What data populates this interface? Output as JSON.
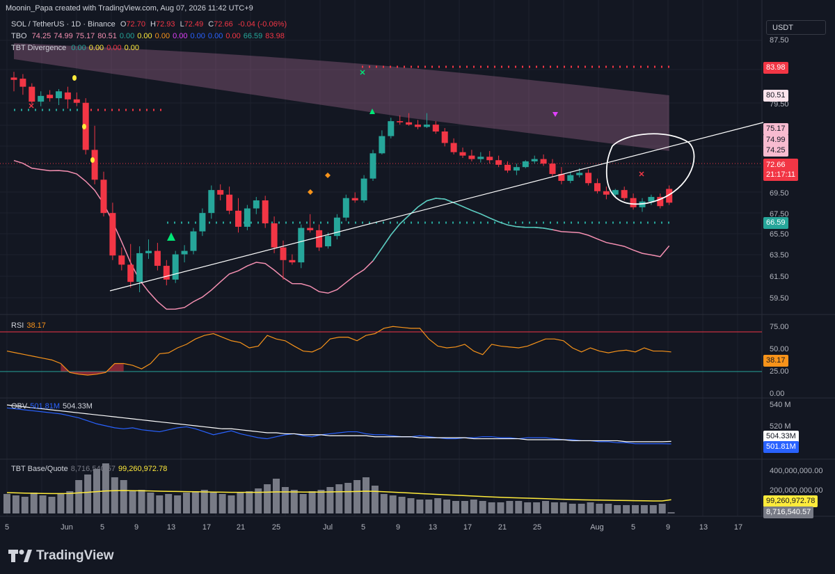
{
  "header": {
    "credit": "Moonin_Papa created with TradingView.com, Aug 07, 2026 11:42 UTC+9",
    "brand": "TradingView"
  },
  "legend": {
    "symbol": "SOL / TetherUS · 1D · Binance",
    "ohlc": {
      "o": "72.70",
      "h": "72.93",
      "l": "72.49",
      "c": "72.66",
      "chg": "-0.04 (-0.06%)"
    },
    "tbo": {
      "name": "TBO",
      "values": [
        "74.25",
        "74.99",
        "75.17",
        "80.51",
        "0.00",
        "0.00",
        "0.00",
        "0.00",
        "0.00",
        "0.00",
        "0.00",
        "66.59",
        "83.98"
      ]
    },
    "divergence": {
      "name": "TBT Divergence",
      "values": [
        "0.00",
        "0.00",
        "0.00",
        "0.00"
      ]
    },
    "rsi": {
      "name": "RSI",
      "value": "38.17"
    },
    "obv": {
      "name": "OBV",
      "v1": "501.81M",
      "v2": "504.33M"
    },
    "base_quote": {
      "name": "TBT Base/Quote",
      "v1": "8,716,540.57",
      "v2": "99,260,972.78"
    }
  },
  "currency_button": "USDT",
  "price_tags": {
    "p8398": "83.98",
    "p8051": "80.51",
    "p7517": "75.17",
    "p7499": "74.99",
    "p7425": "74.25",
    "last": "72.66",
    "countdown": "21:17:11",
    "p6659": "66.59",
    "rsi": "38.17",
    "obv1": "504.33M",
    "obv2": "501.81M",
    "vol_ma": "99,260,972.78",
    "vol": "8,716,540.57"
  },
  "colors": {
    "up": "#26a69a",
    "down": "#f23645",
    "bg": "#131722",
    "grid": "#1e222d",
    "rsi": "#f7931a",
    "obv": "#2962ff",
    "pink": "#f48fb1",
    "teal": "#4dd0c0",
    "yellow": "#ffeb3b"
  },
  "chart_data": [
    {
      "type": "candlestick",
      "title": "SOL / TetherUS · 1D · Binance",
      "y_ticks": [
        "87.50",
        "81.50",
        "79.50",
        "75.50",
        "73.50",
        "71.50",
        "69.50",
        "67.50",
        "65.50",
        "63.50",
        "61.50",
        "59.50"
      ],
      "x_ticks": [
        "5",
        "Jun",
        "5",
        "9",
        "13",
        "17",
        "21",
        "25",
        "Jul",
        "5",
        "9",
        "13",
        "17",
        "21",
        "25",
        "Aug",
        "5",
        "9",
        "13",
        "17"
      ],
      "ylim": [
        58.5,
        89.5
      ],
      "x_start": "2026-05-25",
      "candles": [
        {
          "d": "2026-05-26",
          "o": 74.7,
          "h": 75.2,
          "l": 73.5,
          "c": 74.5
        },
        {
          "d": "2026-05-27",
          "o": 74.6,
          "h": 75.0,
          "l": 73.2,
          "c": 73.9
        },
        {
          "d": "2026-05-28",
          "o": 73.9,
          "h": 74.2,
          "l": 72.4,
          "c": 72.6
        },
        {
          "d": "2026-05-29",
          "o": 72.6,
          "h": 73.5,
          "l": 72.2,
          "c": 73.1
        },
        {
          "d": "2026-05-30",
          "o": 73.2,
          "h": 73.6,
          "l": 72.6,
          "c": 72.9
        },
        {
          "d": "2026-05-31",
          "o": 72.9,
          "h": 73.7,
          "l": 72.3,
          "c": 73.5
        },
        {
          "d": "2026-06-01",
          "o": 73.4,
          "h": 73.9,
          "l": 72.0,
          "c": 72.8
        },
        {
          "d": "2026-06-02",
          "o": 72.8,
          "h": 73.4,
          "l": 72.2,
          "c": 72.5
        },
        {
          "d": "2026-06-03",
          "o": 72.5,
          "h": 72.9,
          "l": 68.0,
          "c": 68.4
        },
        {
          "d": "2026-06-04",
          "o": 68.4,
          "h": 70.5,
          "l": 65.4,
          "c": 65.8
        },
        {
          "d": "2026-06-05",
          "o": 65.8,
          "h": 66.5,
          "l": 62.6,
          "c": 62.9
        },
        {
          "d": "2026-06-06",
          "o": 62.9,
          "h": 63.8,
          "l": 58.8,
          "c": 59.2
        },
        {
          "d": "2026-06-07",
          "o": 59.2,
          "h": 59.9,
          "l": 57.9,
          "c": 58.4
        },
        {
          "d": "2026-06-08",
          "o": 58.4,
          "h": 60.2,
          "l": 56.4,
          "c": 56.9
        },
        {
          "d": "2026-06-09",
          "o": 56.9,
          "h": 60.0,
          "l": 56.0,
          "c": 59.4
        },
        {
          "d": "2026-06-10",
          "o": 59.4,
          "h": 60.6,
          "l": 58.9,
          "c": 59.6
        },
        {
          "d": "2026-06-11",
          "o": 59.6,
          "h": 60.3,
          "l": 57.9,
          "c": 58.3
        },
        {
          "d": "2026-06-12",
          "o": 58.3,
          "h": 58.8,
          "l": 56.6,
          "c": 57.1
        },
        {
          "d": "2026-06-13",
          "o": 57.1,
          "h": 59.6,
          "l": 56.8,
          "c": 59.3
        },
        {
          "d": "2026-06-14",
          "o": 59.3,
          "h": 60.1,
          "l": 58.6,
          "c": 59.6
        },
        {
          "d": "2026-06-15",
          "o": 59.6,
          "h": 61.6,
          "l": 59.3,
          "c": 61.3
        },
        {
          "d": "2026-06-16",
          "o": 61.3,
          "h": 63.3,
          "l": 60.9,
          "c": 62.9
        },
        {
          "d": "2026-06-17",
          "o": 62.9,
          "h": 65.3,
          "l": 62.4,
          "c": 64.9
        },
        {
          "d": "2026-06-18",
          "o": 64.9,
          "h": 65.4,
          "l": 64.0,
          "c": 64.5
        },
        {
          "d": "2026-06-19",
          "o": 64.5,
          "h": 65.2,
          "l": 62.8,
          "c": 63.1
        },
        {
          "d": "2026-06-20",
          "o": 63.1,
          "h": 64.2,
          "l": 61.2,
          "c": 61.7
        },
        {
          "d": "2026-06-21",
          "o": 61.7,
          "h": 63.6,
          "l": 61.4,
          "c": 63.3
        },
        {
          "d": "2026-06-22",
          "o": 63.3,
          "h": 64.3,
          "l": 62.8,
          "c": 64.0
        },
        {
          "d": "2026-06-23",
          "o": 64.0,
          "h": 64.4,
          "l": 61.6,
          "c": 62.0
        },
        {
          "d": "2026-06-24",
          "o": 62.0,
          "h": 62.6,
          "l": 59.4,
          "c": 59.9
        },
        {
          "d": "2026-06-25",
          "o": 59.9,
          "h": 60.5,
          "l": 57.1,
          "c": 58.8
        },
        {
          "d": "2026-06-26",
          "o": 58.8,
          "h": 59.3,
          "l": 58.4,
          "c": 58.6
        },
        {
          "d": "2026-06-27",
          "o": 58.6,
          "h": 61.9,
          "l": 58.1,
          "c": 61.6
        },
        {
          "d": "2026-06-28",
          "o": 61.6,
          "h": 62.8,
          "l": 61.2,
          "c": 61.4
        },
        {
          "d": "2026-06-29",
          "o": 61.4,
          "h": 61.9,
          "l": 59.6,
          "c": 59.9
        },
        {
          "d": "2026-06-30",
          "o": 60.0,
          "h": 61.2,
          "l": 59.8,
          "c": 60.9
        },
        {
          "d": "2026-07-01",
          "o": 60.9,
          "h": 62.8,
          "l": 60.6,
          "c": 62.5
        },
        {
          "d": "2026-07-02",
          "o": 62.5,
          "h": 64.5,
          "l": 62.2,
          "c": 64.2
        },
        {
          "d": "2026-07-03",
          "o": 64.2,
          "h": 64.7,
          "l": 63.8,
          "c": 64.0
        },
        {
          "d": "2026-07-04",
          "o": 64.0,
          "h": 66.2,
          "l": 63.8,
          "c": 65.9
        },
        {
          "d": "2026-07-05",
          "o": 65.9,
          "h": 68.4,
          "l": 65.7,
          "c": 68.1
        },
        {
          "d": "2026-07-06",
          "o": 68.1,
          "h": 70.1,
          "l": 68.0,
          "c": 69.6
        },
        {
          "d": "2026-07-07",
          "o": 69.6,
          "h": 71.2,
          "l": 69.4,
          "c": 70.9
        },
        {
          "d": "2026-07-08",
          "o": 70.9,
          "h": 71.4,
          "l": 70.6,
          "c": 70.8
        },
        {
          "d": "2026-07-09",
          "o": 70.8,
          "h": 71.6,
          "l": 70.5,
          "c": 70.6
        },
        {
          "d": "2026-07-10",
          "o": 70.6,
          "h": 71.0,
          "l": 70.2,
          "c": 70.4
        },
        {
          "d": "2026-07-11",
          "o": 70.4,
          "h": 71.6,
          "l": 70.3,
          "c": 70.6
        },
        {
          "d": "2026-07-12",
          "o": 70.6,
          "h": 70.9,
          "l": 69.8,
          "c": 70.0
        },
        {
          "d": "2026-07-13",
          "o": 70.0,
          "h": 70.3,
          "l": 68.7,
          "c": 69.0
        },
        {
          "d": "2026-07-14",
          "o": 69.0,
          "h": 69.4,
          "l": 68.0,
          "c": 68.2
        },
        {
          "d": "2026-07-15",
          "o": 68.2,
          "h": 68.6,
          "l": 67.7,
          "c": 67.9
        },
        {
          "d": "2026-07-16",
          "o": 67.9,
          "h": 68.4,
          "l": 67.4,
          "c": 67.6
        },
        {
          "d": "2026-07-17",
          "o": 67.6,
          "h": 68.2,
          "l": 67.3,
          "c": 67.8
        },
        {
          "d": "2026-07-18",
          "o": 67.8,
          "h": 68.3,
          "l": 67.2,
          "c": 67.5
        },
        {
          "d": "2026-07-19",
          "o": 67.5,
          "h": 67.9,
          "l": 66.9,
          "c": 67.1
        },
        {
          "d": "2026-07-20",
          "o": 67.1,
          "h": 67.4,
          "l": 66.4,
          "c": 66.6
        },
        {
          "d": "2026-07-21",
          "o": 66.6,
          "h": 67.2,
          "l": 66.2,
          "c": 66.9
        },
        {
          "d": "2026-07-22",
          "o": 66.9,
          "h": 67.5,
          "l": 66.8,
          "c": 67.4
        },
        {
          "d": "2026-07-23",
          "o": 67.4,
          "h": 67.9,
          "l": 67.2,
          "c": 67.6
        },
        {
          "d": "2026-07-24",
          "o": 67.6,
          "h": 68.0,
          "l": 67.0,
          "c": 67.2
        },
        {
          "d": "2026-07-25",
          "o": 67.2,
          "h": 67.6,
          "l": 66.1,
          "c": 66.3
        },
        {
          "d": "2026-07-26",
          "o": 66.3,
          "h": 66.9,
          "l": 65.4,
          "c": 65.7
        },
        {
          "d": "2026-07-27",
          "o": 65.7,
          "h": 66.5,
          "l": 65.5,
          "c": 66.2
        },
        {
          "d": "2026-07-28",
          "o": 66.2,
          "h": 66.8,
          "l": 66.0,
          "c": 66.4
        },
        {
          "d": "2026-07-29",
          "o": 66.4,
          "h": 66.7,
          "l": 65.3,
          "c": 65.5
        },
        {
          "d": "2026-07-30",
          "o": 65.5,
          "h": 65.9,
          "l": 64.6,
          "c": 64.8
        },
        {
          "d": "2026-07-31",
          "o": 64.8,
          "h": 65.2,
          "l": 64.1,
          "c": 64.5
        },
        {
          "d": "2026-08-01",
          "o": 64.5,
          "h": 65.0,
          "l": 64.3,
          "c": 64.9
        },
        {
          "d": "2026-08-02",
          "o": 64.9,
          "h": 65.2,
          "l": 64.0,
          "c": 64.2
        },
        {
          "d": "2026-08-03",
          "o": 64.2,
          "h": 64.6,
          "l": 63.2,
          "c": 63.4
        },
        {
          "d": "2026-08-04",
          "o": 63.4,
          "h": 64.2,
          "l": 63.0,
          "c": 63.9
        },
        {
          "d": "2026-08-05",
          "o": 63.9,
          "h": 64.5,
          "l": 63.6,
          "c": 64.3
        },
        {
          "d": "2026-08-06",
          "o": 64.3,
          "h": 64.6,
          "l": 63.3,
          "c": 63.5
        },
        {
          "d": "2026-08-07",
          "o": 72.7,
          "h": 72.93,
          "l": 72.49,
          "c": 72.66
        }
      ],
      "annotations": [
        "trendline",
        "circle"
      ]
    },
    {
      "type": "line",
      "title": "RSI",
      "y_ticks": [
        "75.00",
        "50.00",
        "25.00",
        "0.00"
      ],
      "ylim": [
        0,
        100
      ],
      "bands": [
        70,
        30
      ],
      "values": [
        48,
        46,
        44,
        42,
        40,
        38,
        34,
        24,
        22,
        21,
        22,
        24,
        34,
        34,
        32,
        28,
        34,
        45,
        46,
        50,
        54,
        60,
        64,
        66,
        62,
        58,
        56,
        50,
        52,
        64,
        60,
        58,
        52,
        48,
        47,
        50,
        60,
        62,
        62,
        58,
        64,
        66,
        72,
        74,
        73,
        72,
        72,
        60,
        52,
        50,
        51,
        54,
        48,
        44,
        54,
        52,
        51,
        50,
        52,
        56,
        60,
        60,
        58,
        50,
        47,
        50,
        48,
        46,
        48,
        49,
        47,
        50,
        48,
        48,
        47
      ]
    },
    {
      "type": "line",
      "title": "OBV",
      "y_ticks": [
        "540 M",
        "520 M"
      ],
      "series": [
        {
          "name": "OBV",
          "values": [
            538,
            537,
            536,
            535,
            534,
            533,
            532,
            530,
            528,
            525,
            522,
            520,
            518,
            517,
            518,
            516,
            515,
            514,
            516,
            518,
            519,
            517,
            514,
            511,
            513,
            515,
            512,
            510,
            508,
            507,
            509,
            511,
            512,
            510,
            509,
            511,
            512,
            513,
            514,
            514,
            512,
            511,
            511,
            510,
            509,
            509,
            510,
            509,
            508,
            507,
            507,
            508,
            508,
            509,
            509,
            508,
            508,
            507,
            508,
            508,
            508,
            507,
            506,
            506,
            505,
            505,
            504,
            504,
            503,
            503,
            502,
            502,
            502,
            502,
            501.81
          ]
        },
        {
          "name": "",
          "values": [
            541,
            540,
            539,
            538,
            537,
            536,
            535,
            534,
            533,
            532,
            531,
            530,
            529,
            528,
            527,
            526,
            525,
            524,
            523,
            522,
            521,
            520,
            519,
            518,
            517,
            517,
            516,
            515,
            514,
            513,
            513,
            512,
            512,
            511,
            511,
            511,
            510,
            510,
            510,
            510,
            510,
            509,
            509,
            509,
            509,
            509,
            508,
            508,
            508,
            508,
            508,
            508,
            507,
            507,
            507,
            507,
            507,
            507,
            506,
            506,
            506,
            506,
            506,
            505,
            505,
            505,
            505,
            505,
            505,
            504,
            504,
            504,
            504,
            504,
            504.33
          ]
        }
      ]
    },
    {
      "type": "bar",
      "title": "TBT Base/Quote",
      "y_ticks": [
        "400,000,000.00",
        "200,000,000.00"
      ],
      "ylim": [
        0,
        500000000
      ],
      "values": [
        1.4,
        1.3,
        1.2,
        1.5,
        1.3,
        1.2,
        1.4,
        1.6,
        2.4,
        2.8,
        3.2,
        3.6,
        2.6,
        2.4,
        1.6,
        1.7,
        1.5,
        1.3,
        1.4,
        1.3,
        1.5,
        1.6,
        1.7,
        1.5,
        1.4,
        1.3,
        1.5,
        1.6,
        1.8,
        2.1,
        2.5,
        1.9,
        1.7,
        1.4,
        1.6,
        1.7,
        1.9,
        2.1,
        2.2,
        2.4,
        2.6,
        2.0,
        1.4,
        1.3,
        1.2,
        1.1,
        1.0,
        1.0,
        1.1,
        1.0,
        0.9,
        0.9,
        1.0,
        0.9,
        0.8,
        0.8,
        0.9,
        0.9,
        0.8,
        0.8,
        0.9,
        0.8,
        0.8,
        0.7,
        0.7,
        0.8,
        0.7,
        0.7,
        0.6,
        0.6,
        0.6,
        0.6,
        0.6,
        0.7,
        0.087
      ],
      "ma_values": [
        1.5,
        1.48,
        1.46,
        1.45,
        1.44,
        1.43,
        1.43,
        1.44,
        1.48,
        1.52,
        1.57,
        1.62,
        1.64,
        1.65,
        1.64,
        1.63,
        1.62,
        1.6,
        1.59,
        1.58,
        1.57,
        1.56,
        1.55,
        1.54,
        1.53,
        1.52,
        1.52,
        1.52,
        1.52,
        1.53,
        1.55,
        1.55,
        1.55,
        1.54,
        1.54,
        1.54,
        1.55,
        1.56,
        1.57,
        1.58,
        1.6,
        1.59,
        1.56,
        1.53,
        1.5,
        1.47,
        1.43,
        1.4,
        1.37,
        1.34,
        1.31,
        1.28,
        1.25,
        1.22,
        1.19,
        1.16,
        1.14,
        1.12,
        1.1,
        1.08,
        1.06,
        1.04,
        1.02,
        1.0,
        0.98,
        0.97,
        0.96,
        0.95,
        0.94,
        0.93,
        0.92,
        0.91,
        0.9,
        0.9,
        0.99
      ]
    }
  ]
}
